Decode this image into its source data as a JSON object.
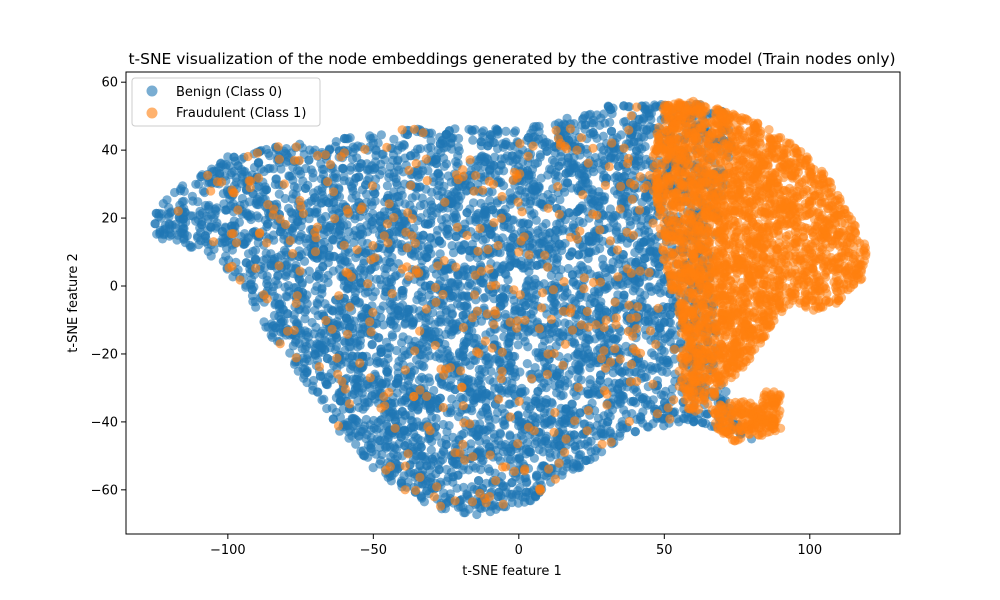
{
  "chart_data": {
    "type": "scatter",
    "title": "t-SNE visualization of the node embeddings generated by the contrastive model (Train nodes only)",
    "xlabel": "t-SNE feature 1",
    "ylabel": "t-SNE feature 2",
    "xlim": [
      -135,
      131
    ],
    "ylim": [
      -73,
      63
    ],
    "xticks": [
      -100,
      -50,
      0,
      50,
      100
    ],
    "yticks": [
      -60,
      -40,
      -20,
      0,
      20,
      40,
      60
    ],
    "xtick_labels": [
      "−100",
      "−50",
      "0",
      "50",
      "100"
    ],
    "ytick_labels": [
      "−60",
      "−40",
      "−20",
      "0",
      "20",
      "40",
      "60"
    ],
    "grid": false,
    "legend_position": "top-left",
    "series": [
      {
        "name": "Benign (Class 0)",
        "color": "#1f77b4",
        "approx_extent": {
          "x": [
            -125,
            95
          ],
          "y": [
            -68,
            54
          ]
        },
        "sample_points": [
          [
            -120,
            18
          ],
          [
            -110,
            30
          ],
          [
            -100,
            38
          ],
          [
            -90,
            25
          ],
          [
            -80,
            10
          ],
          [
            -70,
            40
          ],
          [
            -60,
            0
          ],
          [
            -55,
            -30
          ],
          [
            -50,
            42
          ],
          [
            -40,
            -50
          ],
          [
            -30,
            45
          ],
          [
            -25,
            20
          ],
          [
            -20,
            -65
          ],
          [
            -10,
            10
          ],
          [
            0,
            -40
          ],
          [
            5,
            30
          ],
          [
            10,
            -55
          ],
          [
            20,
            -20
          ],
          [
            25,
            48
          ],
          [
            30,
            0
          ],
          [
            40,
            -30
          ],
          [
            45,
            20
          ],
          [
            55,
            -40
          ],
          [
            65,
            45
          ],
          [
            80,
            -45
          ]
        ]
      },
      {
        "name": "Fraudulent (Class 1)",
        "color": "#ff7f0e",
        "approx_extent": {
          "x": [
            -122,
            120
          ],
          "y": [
            -66,
            56
          ]
        },
        "sample_points": [
          [
            55,
            50
          ],
          [
            60,
            30
          ],
          [
            65,
            10
          ],
          [
            70,
            -10
          ],
          [
            75,
            40
          ],
          [
            80,
            20
          ],
          [
            85,
            -5
          ],
          [
            90,
            35
          ],
          [
            95,
            10
          ],
          [
            100,
            25
          ],
          [
            105,
            0
          ],
          [
            110,
            15
          ],
          [
            115,
            8
          ],
          [
            70,
            -40
          ],
          [
            80,
            -42
          ],
          [
            88,
            -35
          ],
          [
            -82,
            -17
          ],
          [
            -60,
            12
          ],
          [
            -40,
            5
          ],
          [
            -20,
            -25
          ],
          [
            0,
            10
          ],
          [
            10,
            -20
          ],
          [
            20,
            40
          ],
          [
            30,
            -10
          ],
          [
            -10,
            -62
          ]
        ]
      }
    ]
  }
}
